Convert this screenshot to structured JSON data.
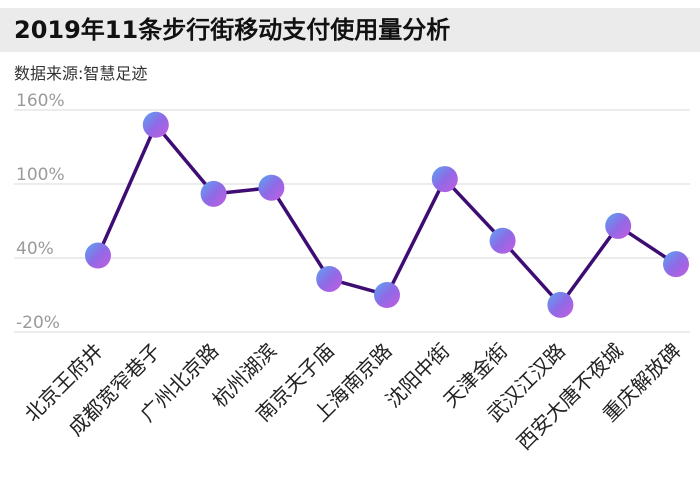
{
  "header": {
    "title": "2019年11条步行街移动支付使用量分析",
    "subtitle": "数据来源:智慧足迹"
  },
  "colors": {
    "line": "#3d0d73",
    "marker_start": "#5aa6f2",
    "marker_mid": "#8f6ae6",
    "marker_end": "#c45ce0",
    "grid": "#d9d9d9",
    "tick_text": "#9a9a9a",
    "category_text": "#222222",
    "title_bar_bg": "#ebebeb"
  },
  "chart_data": {
    "type": "line",
    "title": "2019年11条步行街移动支付使用量分析",
    "xlabel": "",
    "ylabel": "",
    "ylim": [
      -20,
      160
    ],
    "yticks": [
      160,
      100,
      40,
      -20
    ],
    "ytick_labels": [
      "160%",
      "100%",
      "40%",
      "-20%"
    ],
    "grid": true,
    "legend": "none",
    "categories": [
      "北京王府井",
      "成都宽窄巷子",
      "广州北京路",
      "杭州湖滨",
      "南京夫子庙",
      "上海南京路",
      "沈阳中街",
      "天津金街",
      "武汉江汉路",
      "西安大唐不夜城",
      "重庆解放碑"
    ],
    "series": [
      {
        "values": [
          42,
          148,
          92,
          97,
          23,
          10,
          104,
          54,
          2,
          66,
          35
        ]
      }
    ]
  }
}
